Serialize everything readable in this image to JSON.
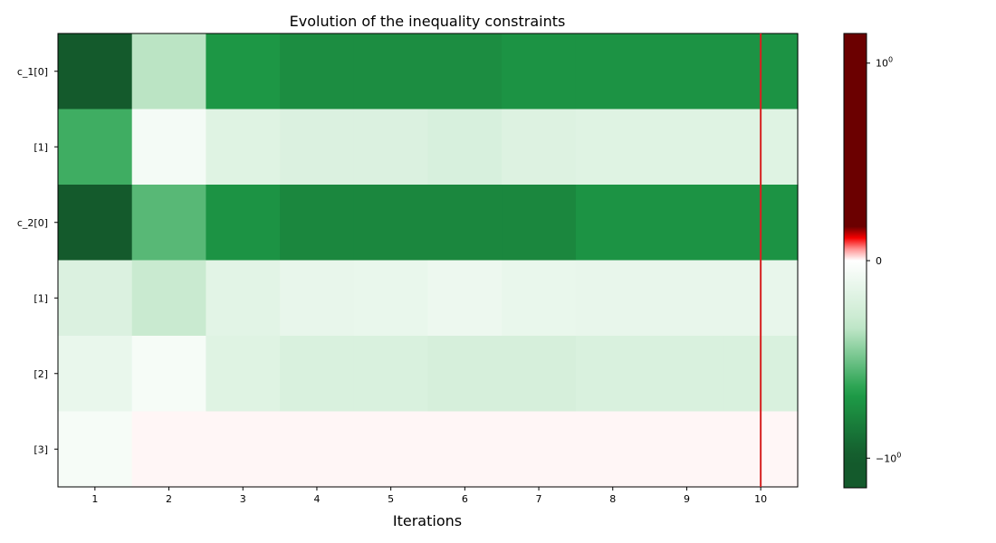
{
  "chart_data": {
    "type": "heatmap",
    "title": "Evolution of the inequality constraints",
    "xlabel": "Iterations",
    "ylabel": "",
    "x_ticks": [
      "1",
      "2",
      "3",
      "4",
      "5",
      "6",
      "7",
      "8",
      "9",
      "10"
    ],
    "y_ticks": [
      "c_1[0]",
      "[1]",
      "c_2[0]",
      "[1]",
      "[2]",
      "[3]"
    ],
    "values": [
      [
        -1.0,
        -0.35,
        -0.7,
        -0.75,
        -0.75,
        -0.75,
        -0.72,
        -0.72,
        -0.72,
        -0.72
      ],
      [
        -0.6,
        -0.06,
        -0.18,
        -0.2,
        -0.2,
        -0.22,
        -0.19,
        -0.18,
        -0.18,
        -0.18
      ],
      [
        -1.0,
        -0.55,
        -0.72,
        -0.78,
        -0.78,
        -0.78,
        -0.78,
        -0.72,
        -0.72,
        -0.72
      ],
      [
        -0.2,
        -0.3,
        -0.16,
        -0.13,
        -0.12,
        -0.1,
        -0.12,
        -0.13,
        -0.13,
        -0.13
      ],
      [
        -0.12,
        -0.05,
        -0.18,
        -0.21,
        -0.21,
        -0.23,
        -0.23,
        -0.21,
        -0.21,
        -0.21
      ],
      [
        -0.05,
        0.005,
        0.005,
        0.005,
        0.005,
        0.005,
        0.005,
        0.005,
        0.005,
        0.005
      ]
    ],
    "colorbar": {
      "ticks": [
        {
          "label": "10",
          "exp": "0",
          "value": 1
        },
        {
          "label": "0",
          "exp": "",
          "value": 0
        },
        {
          "label": "−10",
          "exp": "0",
          "value": -1
        }
      ],
      "range": [
        -1.15,
        1.15
      ],
      "colors_negative": [
        "#145a2c",
        "#1e9e48",
        "#c3e8cb",
        "#ffffff"
      ],
      "colors_positive": [
        "#ffffff",
        "#ff9a9a",
        "#ff0000",
        "#6b0000"
      ]
    },
    "marker_line": {
      "x": "10",
      "color": "#d62020"
    },
    "grid": false
  }
}
